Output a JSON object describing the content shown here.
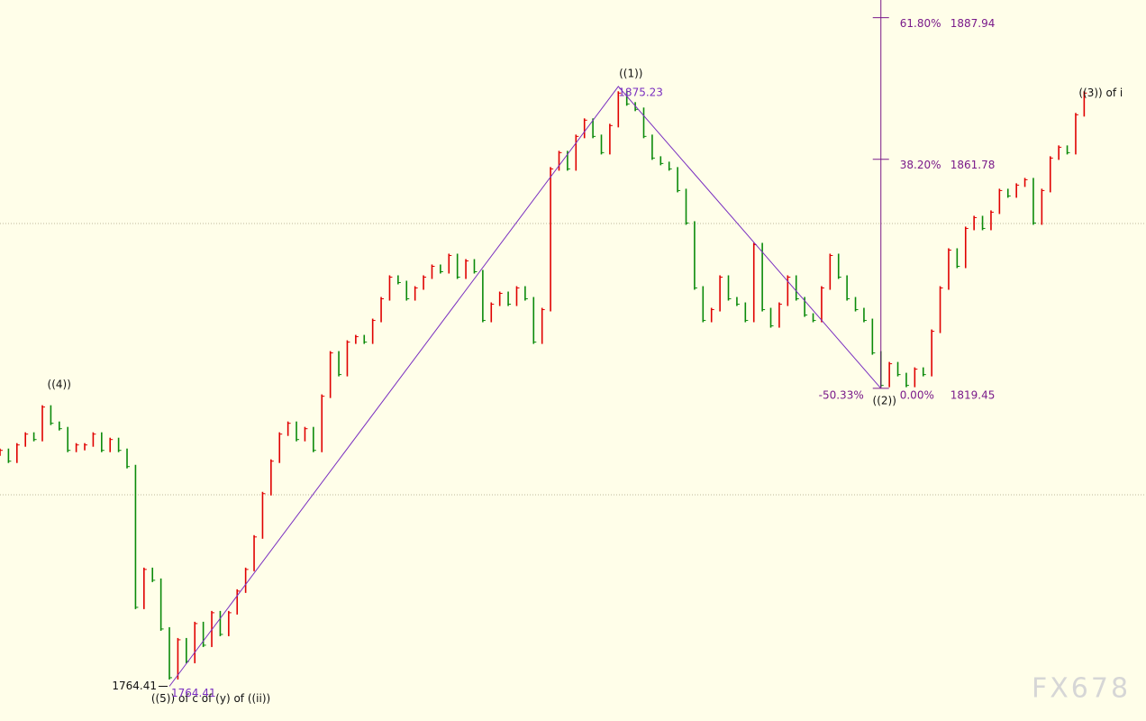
{
  "chart_data": {
    "type": "price",
    "xlim": [
      0,
      135.3
    ],
    "ylim": [
      1758.0,
      1891.2
    ],
    "hlines": [
      1849.9,
      1799.8
    ],
    "up_color": "#e00000",
    "down_color": "#0a8a0a",
    "closes": [
      1808,
      1806,
      1809,
      1811,
      1810,
      1816,
      1813,
      1812,
      1808,
      1809,
      1809,
      1811,
      1808,
      1810,
      1808,
      1805,
      1779,
      1786,
      1784,
      1775,
      1766,
      1773,
      1769,
      1776,
      1772,
      1778,
      1774,
      1778,
      1782,
      1786,
      1792,
      1800,
      1806,
      1811,
      1813,
      1810,
      1812,
      1808,
      1818,
      1826,
      1822,
      1828,
      1829,
      1828,
      1832,
      1836,
      1840,
      1839,
      1836,
      1838,
      1840,
      1842,
      1841,
      1844,
      1840,
      1843,
      1841,
      1832,
      1835,
      1837,
      1835,
      1838,
      1836,
      1828,
      1834,
      1860,
      1863,
      1860,
      1866,
      1869,
      1866,
      1863,
      1868,
      1874,
      1872,
      1871,
      1866,
      1862,
      1861,
      1860,
      1856,
      1850,
      1838,
      1832,
      1834,
      1840,
      1836,
      1835,
      1832,
      1846,
      1834,
      1831,
      1835,
      1840,
      1836,
      1833,
      1832,
      1838,
      1844,
      1840,
      1836,
      1834,
      1832,
      1826,
      1820,
      1824,
      1822,
      1820,
      1823,
      1822,
      1830,
      1838,
      1845,
      1842,
      1849,
      1851,
      1849,
      1852,
      1856,
      1855,
      1857,
      1858,
      1850,
      1856,
      1862,
      1864,
      1863,
      1870,
      1874
    ],
    "wave": {
      "color": "#7a2fc0",
      "points": [
        {
          "x": 20,
          "price": 1764.41,
          "label": "((5)) of c of (y) of ((ii))",
          "position": "below"
        },
        {
          "x": 73,
          "price": 1875.23,
          "label": "((1))",
          "position": "above"
        },
        {
          "x": 104,
          "price": 1819.45,
          "label": "((2))",
          "position": "below"
        }
      ]
    },
    "annotations": [
      {
        "x": 5.5,
        "price": 1817.8,
        "label": "((4))",
        "position": "above"
      },
      {
        "x": 128,
        "price": 1875.0,
        "label": "((3)) of i",
        "position": "right"
      }
    ],
    "fib": {
      "x": 104,
      "color": "#7a1a8a",
      "levels": [
        {
          "label": "61.80%",
          "price": 1887.94
        },
        {
          "label": "38.20%",
          "price": 1861.78
        },
        {
          "label": "0.00%",
          "price": 1819.45
        }
      ],
      "extension_label": "-50.33%"
    },
    "watermark": "FX678"
  }
}
